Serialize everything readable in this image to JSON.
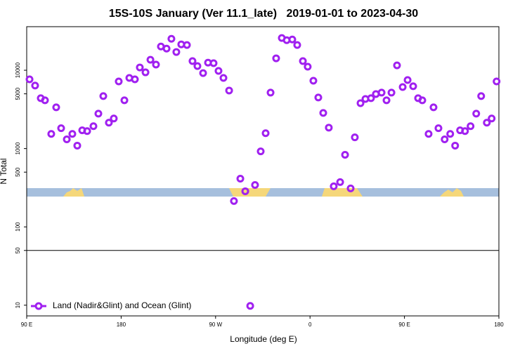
{
  "chart_data": {
    "type": "scatter",
    "title": "15S-10S January (Ver 11.1_late)   2019-01-01 to 2023-04-30",
    "x_label": "Longitude (deg E)",
    "y_label": "N Total",
    "log_y": true,
    "xlim": [
      90,
      540
    ],
    "ylim": [
      7.3,
      36000
    ],
    "xticks": [
      {
        "value": 90,
        "label": "90 E"
      },
      180,
      {
        "value": 270,
        "label": "90 W"
      },
      {
        "value": 360,
        "label": "0"
      },
      {
        "value": 450,
        "label": "90 E"
      },
      {
        "value": 540,
        "label": "180"
      }
    ],
    "yticks": [
      10,
      50,
      100,
      500,
      1000,
      5000,
      10000
    ],
    "hline": 50,
    "legend": "bottom-left",
    "series": [
      {
        "name": "Land (Nadir&Glint) and Ocean (Glint)",
        "color": "#a020f0",
        "x": [
          92.7,
          98,
          103.4,
          107.4,
          113.4,
          118.1,
          122.8,
          128.2,
          133.5,
          138.2,
          142.9,
          147.6,
          153.6,
          158.3,
          163,
          168.3,
          173,
          177.7,
          183.1,
          187.8,
          193.1,
          197.8,
          203.2,
          207.9,
          213.2,
          217.9,
          223.3,
          227.9,
          232.6,
          237.3,
          242.7,
          248,
          252.7,
          258.1,
          262.8,
          268.1,
          272.8,
          277.5,
          282.9,
          287.5,
          293.6,
          298.3,
          303,
          307.6,
          313,
          317.7,
          322.4,
          327.7,
          333.1,
          337.8,
          343.1,
          347.8,
          353.2,
          357.8,
          363.2,
          367.9,
          372.6,
          377.9,
          382.6,
          388.7,
          393.4,
          398.7,
          402.7,
          408.1,
          412.8,
          418.1,
          422.8,
          428.2,
          432.9,
          437.6,
          442.9,
          448.3,
          453,
          458.3,
          463,
          467,
          473,
          477.7,
          482.4,
          488.3,
          493.6,
          498.3,
          503,
          507.7,
          513,
          518.4,
          523.1,
          528.5,
          533.1,
          537.8
        ],
        "values": [
          7660,
          6370,
          4400,
          4130,
          1540,
          3360,
          1820,
          1310,
          1540,
          1090,
          1710,
          1670,
          1930,
          2790,
          4680,
          2140,
          2420,
          7200,
          4130,
          7980,
          7660,
          10860,
          9400,
          13600,
          11800,
          20100,
          18900,
          25200,
          17100,
          21400,
          21000,
          13100,
          11300,
          9200,
          12500,
          12300,
          9800,
          7980,
          5510,
          214,
          413,
          285,
          9.8,
          343,
          920,
          1570,
          5180,
          14200,
          25800,
          24200,
          24700,
          21000,
          13100,
          11100,
          7350,
          4490,
          2850,
          1850,
          330,
          373,
          832,
          310,
          1390,
          3800,
          4300,
          4400,
          4970,
          5180,
          4130,
          5180,
          11550,
          6100,
          7500,
          6240,
          4400,
          4130,
          1540,
          3360,
          1820,
          1310,
          1540,
          1090,
          1710,
          1670,
          1930,
          2790,
          4680,
          2140,
          2420,
          7200
        ]
      }
    ]
  }
}
